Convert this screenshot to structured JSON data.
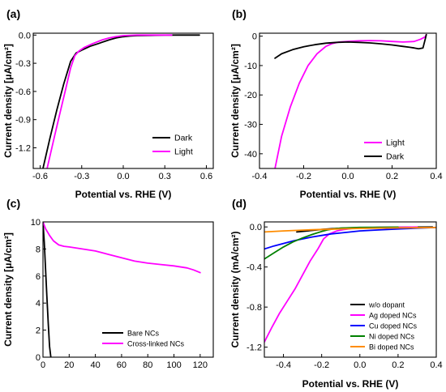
{
  "chart_data": [
    {
      "panel": "(a)",
      "type": "line",
      "xlabel": "Potential vs. RHE (V)",
      "ylabel": "Current density [μA/cm²]",
      "xlim": [
        -0.65,
        0.65
      ],
      "ylim": [
        -1.42,
        0.02
      ],
      "xticks": [
        "-0.6",
        "-0.3",
        "0.0",
        "0.3",
        "0.6"
      ],
      "xtick_values": [
        -0.6,
        -0.3,
        0.0,
        0.3,
        0.6
      ],
      "yticks": [
        "0.0",
        "-0.3",
        "-0.6",
        "-0.9",
        "-1.2"
      ],
      "ytick_values": [
        0.0,
        -0.3,
        -0.6,
        -0.9,
        -1.2
      ],
      "legend_position": "bottom-right",
      "series": [
        {
          "name": "Dark",
          "color": "#000000",
          "x": [
            -0.58,
            -0.53,
            -0.48,
            -0.43,
            -0.38,
            -0.34,
            -0.3,
            -0.24,
            -0.18,
            -0.1,
            -0.05,
            0.0,
            0.05,
            0.1,
            0.2,
            0.3,
            0.4,
            0.5,
            0.55
          ],
          "y": [
            -1.42,
            -1.1,
            -0.8,
            -0.52,
            -0.28,
            -0.19,
            -0.16,
            -0.12,
            -0.09,
            -0.05,
            -0.03,
            -0.017,
            -0.01,
            -0.006,
            -0.003,
            -0.001,
            0.0,
            0.0,
            0.0
          ]
        },
        {
          "name": "Light",
          "color": "#ff00ff",
          "x": [
            -0.55,
            -0.5,
            -0.46,
            -0.42,
            -0.38,
            -0.35,
            -0.32,
            -0.28,
            -0.22,
            -0.15,
            -0.1,
            -0.05,
            0.0,
            0.05,
            0.1,
            0.15,
            0.2,
            0.25,
            0.3,
            0.35
          ],
          "y": [
            -1.42,
            -1.1,
            -0.85,
            -0.6,
            -0.35,
            -0.22,
            -0.17,
            -0.13,
            -0.09,
            -0.05,
            -0.03,
            -0.015,
            -0.006,
            -0.002,
            0.0,
            0.0,
            0.0,
            0.0,
            0.0,
            0.0
          ]
        }
      ]
    },
    {
      "panel": "(b)",
      "type": "line",
      "xlabel": "Potential vs. RHE (V)",
      "ylabel": "Current density [μA/cm²]",
      "xlim": [
        -0.4,
        0.4
      ],
      "ylim": [
        -45,
        1
      ],
      "xticks": [
        "-0.4",
        "-0.2",
        "0.0",
        "0.2",
        "0.4"
      ],
      "xtick_values": [
        -0.4,
        -0.2,
        0.0,
        0.2,
        0.4
      ],
      "yticks": [
        "0",
        "-10",
        "-20",
        "-30",
        "-40"
      ],
      "ytick_values": [
        0,
        -10,
        -20,
        -30,
        -40
      ],
      "legend_position": "bottom-right",
      "series": [
        {
          "name": "Light",
          "color": "#ff00ff",
          "x": [
            -0.33,
            -0.3,
            -0.26,
            -0.22,
            -0.18,
            -0.14,
            -0.1,
            -0.07,
            -0.04,
            0.0,
            0.05,
            0.1,
            0.15,
            0.2,
            0.25,
            0.3,
            0.33,
            0.35,
            0.355
          ],
          "y": [
            -45,
            -34,
            -24,
            -16,
            -10,
            -6,
            -3.5,
            -2.5,
            -2.0,
            -1.8,
            -1.6,
            -1.5,
            -1.6,
            -1.8,
            -2.0,
            -1.8,
            -1.0,
            -0.2,
            0.5
          ]
        },
        {
          "name": "Dark",
          "color": "#000000",
          "x": [
            -0.33,
            -0.3,
            -0.25,
            -0.2,
            -0.15,
            -0.1,
            -0.05,
            0.0,
            0.05,
            0.1,
            0.15,
            0.2,
            0.25,
            0.28,
            0.3,
            0.32,
            0.34,
            0.35,
            0.355
          ],
          "y": [
            -7.5,
            -6.0,
            -4.6,
            -3.6,
            -2.9,
            -2.4,
            -2.1,
            -2.0,
            -2.1,
            -2.3,
            -2.6,
            -3.0,
            -3.5,
            -3.8,
            -4.0,
            -4.3,
            -4.0,
            -1.0,
            0.5
          ]
        }
      ]
    },
    {
      "panel": "(c)",
      "type": "line",
      "xlabel": "",
      "ylabel": "Current density [μA/cm²]",
      "xlim": [
        0,
        130
      ],
      "ylim": [
        0,
        10
      ],
      "xticks": [
        "0",
        "20",
        "40",
        "60",
        "80",
        "100",
        "120"
      ],
      "xtick_values": [
        0,
        20,
        40,
        60,
        80,
        100,
        120
      ],
      "yticks": [
        "0",
        "2",
        "4",
        "6",
        "8",
        "10"
      ],
      "ytick_values": [
        0,
        2,
        4,
        6,
        8,
        10
      ],
      "legend_position": "bottom-left",
      "series": [
        {
          "name": "Bare NCs",
          "color": "#000000",
          "x": [
            0,
            1,
            2,
            3,
            4,
            5,
            6
          ],
          "y": [
            10,
            8.5,
            6.5,
            4.5,
            2.5,
            0.8,
            0.0
          ]
        },
        {
          "name": "Cross-linked NCs",
          "color": "#ff00ff",
          "x": [
            0,
            2,
            5,
            8,
            12,
            16,
            20,
            30,
            40,
            50,
            60,
            70,
            80,
            90,
            100,
            110,
            115,
            120
          ],
          "y": [
            10,
            9.5,
            9.0,
            8.6,
            8.3,
            8.2,
            8.15,
            8.0,
            7.85,
            7.6,
            7.35,
            7.1,
            6.95,
            6.85,
            6.75,
            6.6,
            6.45,
            6.25
          ]
        }
      ]
    },
    {
      "panel": "(d)",
      "type": "line",
      "xlabel": "Potential vs. RHE (V)",
      "ylabel": "Current density (mA/cm²)",
      "xlim": [
        -0.5,
        0.4
      ],
      "ylim": [
        -1.3,
        0.05
      ],
      "xticks": [
        "-0.4",
        "-0.2",
        "0.0",
        "0.2",
        "0.4"
      ],
      "xtick_values": [
        -0.4,
        -0.2,
        0.0,
        0.2,
        0.4
      ],
      "yticks": [
        "0.0",
        "-0.4",
        "-0.8",
        "-1.2"
      ],
      "ytick_values": [
        0.0,
        -0.4,
        -0.8,
        -1.2
      ],
      "legend_position": "bottom-right",
      "series": [
        {
          "name": "w/o dopant",
          "color": "#000000",
          "x": [
            -0.33,
            -0.25,
            -0.2,
            -0.15,
            -0.1,
            -0.05,
            0.0,
            0.1,
            0.2,
            0.3,
            0.38
          ],
          "y": [
            -0.05,
            -0.035,
            -0.025,
            -0.018,
            -0.013,
            -0.01,
            -0.008,
            -0.005,
            -0.003,
            -0.002,
            -0.001
          ]
        },
        {
          "name": "Ag doped NCs",
          "color": "#ff00ff",
          "x": [
            -0.5,
            -0.46,
            -0.42,
            -0.38,
            -0.34,
            -0.3,
            -0.26,
            -0.22,
            -0.19,
            -0.16,
            -0.12,
            -0.08,
            -0.04,
            0.0,
            0.1,
            0.2,
            0.3
          ],
          "y": [
            -1.15,
            -1.0,
            -0.86,
            -0.74,
            -0.62,
            -0.48,
            -0.34,
            -0.22,
            -0.12,
            -0.07,
            -0.04,
            -0.025,
            -0.015,
            -0.01,
            -0.005,
            -0.003,
            -0.001
          ]
        },
        {
          "name": "Cu doped NCs",
          "color": "#0000ff",
          "x": [
            -0.5,
            -0.45,
            -0.4,
            -0.35,
            -0.3,
            -0.25,
            -0.2,
            -0.15,
            -0.1,
            -0.05,
            0.0,
            0.1,
            0.2,
            0.3,
            0.4
          ],
          "y": [
            -0.22,
            -0.19,
            -0.165,
            -0.14,
            -0.12,
            -0.1,
            -0.085,
            -0.07,
            -0.06,
            -0.05,
            -0.04,
            -0.03,
            -0.02,
            -0.012,
            -0.005
          ]
        },
        {
          "name": "Ni doped NCs",
          "color": "#008000",
          "x": [
            -0.5,
            -0.45,
            -0.4,
            -0.35,
            -0.3,
            -0.25,
            -0.2,
            -0.17,
            -0.14,
            -0.1,
            -0.05,
            0.0,
            0.1,
            0.2
          ],
          "y": [
            -0.32,
            -0.26,
            -0.2,
            -0.15,
            -0.11,
            -0.075,
            -0.045,
            -0.03,
            -0.02,
            -0.012,
            -0.008,
            -0.005,
            -0.003,
            -0.002
          ]
        },
        {
          "name": "Bi doped NCs",
          "color": "#ff8c00",
          "x": [
            -0.5,
            -0.4,
            -0.3,
            -0.2,
            -0.1,
            0.0,
            0.1,
            0.2,
            0.3,
            0.4
          ],
          "y": [
            -0.05,
            -0.04,
            -0.032,
            -0.025,
            -0.02,
            -0.015,
            -0.012,
            -0.01,
            -0.008,
            -0.006
          ]
        }
      ]
    }
  ]
}
